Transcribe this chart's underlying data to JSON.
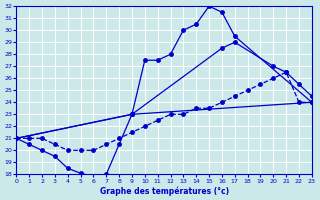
{
  "xlabel": "Graphe des températures (°c)",
  "bg_color": "#cce8e8",
  "line_color": "#0000cc",
  "grid_color": "#ffffff",
  "ylim": [
    18,
    32
  ],
  "yticks": [
    18,
    19,
    20,
    21,
    22,
    23,
    24,
    25,
    26,
    27,
    28,
    29,
    30,
    31,
    32
  ],
  "xlim": [
    0,
    23
  ],
  "xticks": [
    0,
    1,
    2,
    3,
    4,
    5,
    6,
    7,
    8,
    9,
    10,
    11,
    12,
    13,
    14,
    15,
    16,
    17,
    18,
    19,
    20,
    21,
    22,
    23
  ],
  "lines": [
    {
      "x": [
        0,
        1,
        2,
        3,
        4,
        5,
        6,
        7,
        8,
        9,
        23
      ],
      "y": [
        21,
        20.5,
        20,
        19.5,
        18.5,
        18.1,
        17.8,
        18.0,
        20.5,
        23.0,
        24.0
      ],
      "style": "-"
    },
    {
      "x": [
        0,
        9,
        10,
        11,
        12,
        13,
        14,
        15,
        16,
        17,
        23
      ],
      "y": [
        21,
        23,
        27.5,
        27.5,
        28.0,
        30.0,
        30.5,
        32.0,
        31.5,
        29.5,
        24.0
      ],
      "style": "-"
    },
    {
      "x": [
        0,
        9,
        16,
        17,
        20,
        21,
        22,
        23
      ],
      "y": [
        21,
        23,
        28.5,
        29.0,
        27.0,
        26.5,
        25.5,
        24.5
      ],
      "style": "-"
    },
    {
      "x": [
        0,
        1,
        2,
        3,
        4,
        5,
        6,
        7,
        8,
        9,
        10,
        11,
        12,
        13,
        14,
        15,
        16,
        17,
        18,
        19,
        20,
        21,
        22,
        23
      ],
      "y": [
        21.0,
        21.0,
        21.0,
        20.5,
        20.0,
        20.0,
        20.0,
        20.5,
        21.0,
        21.5,
        22.0,
        22.5,
        23.0,
        23.0,
        23.5,
        23.5,
        24.0,
        24.5,
        25.0,
        25.5,
        26.0,
        26.5,
        24.0,
        24.0
      ],
      "style": "--"
    }
  ]
}
